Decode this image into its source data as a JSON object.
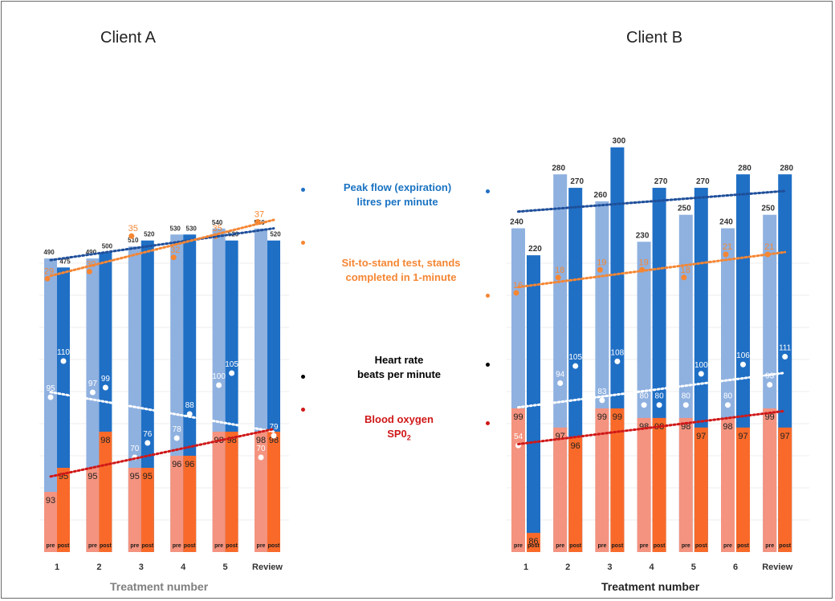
{
  "panels": [
    {
      "title": "Client A",
      "x_title": "Treatment number"
    },
    {
      "title": "Client B",
      "x_title": "Treatment number"
    }
  ],
  "legend": [
    {
      "line1": "Peak flow (expiration)",
      "line2": "litres per minute",
      "color": "#1a73c2"
    },
    {
      "line1": "Sit-to-stand test, stands",
      "line2": "completed in 1-minute",
      "color": "#f58633"
    },
    {
      "line1": "Heart rate",
      "line2": "beats per minute",
      "color": "#000000"
    },
    {
      "line1": "Blood oxygen",
      "line2": "SP0",
      "line2_sub": "2",
      "color": "#d01818"
    }
  ],
  "colors": {
    "peak_pre": "#8fb1e0",
    "peak_post": "#1f6fc5",
    "spo2_pre": "#f4937f",
    "spo2_post": "#f96a2a",
    "sit_to_stand": "#f58633",
    "blood_oxygen_trend": "#d01818",
    "peak_trend": "#1f4f9a",
    "heart_rate": "#ffffff"
  },
  "pair_labels": [
    "pre",
    "post"
  ],
  "chart_data": [
    {
      "type": "bar",
      "title": "Client A",
      "xlabel": "Treatment number",
      "categories": [
        "1",
        "2",
        "3",
        "4",
        "5",
        "Review"
      ],
      "series": [
        {
          "name": "Peak flow (expiration) litres per minute",
          "pre": [
            490,
            490,
            510,
            530,
            540,
            540
          ],
          "post": [
            475,
            500,
            520,
            530,
            520,
            520
          ]
        },
        {
          "name": "Blood oxygen SP02",
          "pre": [
            93,
            95,
            95,
            96,
            98,
            98
          ],
          "post": [
            95,
            98,
            95,
            96,
            98,
            98
          ]
        },
        {
          "name": "Sit-to-stand test, stands completed in 1-minute",
          "values": [
            29,
            30,
            35,
            32,
            35,
            37
          ]
        },
        {
          "name": "Heart rate beats per minute",
          "pre": [
            95,
            97,
            70,
            78,
            100,
            70
          ],
          "post": [
            110,
            99,
            76,
            88,
            105,
            79
          ]
        }
      ]
    },
    {
      "type": "bar",
      "title": "Client B",
      "xlabel": "Treatment number",
      "categories": [
        "1",
        "2",
        "3",
        "4",
        "5",
        "6",
        "Review"
      ],
      "series": [
        {
          "name": "Peak flow (expiration) litres per minute",
          "pre": [
            240,
            280,
            260,
            230,
            250,
            240,
            250
          ],
          "post": [
            220,
            270,
            300,
            270,
            270,
            280,
            280
          ]
        },
        {
          "name": "Blood oxygen SP02",
          "pre": [
            99,
            97,
            99,
            98,
            98,
            98,
            99
          ],
          "post": [
            86,
            96,
            99,
            98,
            97,
            97,
            97
          ]
        },
        {
          "name": "Sit-to-stand test, stands completed in 1-minute",
          "values": [
            16,
            18,
            19,
            19,
            18,
            21,
            21
          ]
        },
        {
          "name": "Heart rate beats per minute",
          "pre": [
            54,
            94,
            83,
            80,
            80,
            80,
            93
          ],
          "post": [
            null,
            105,
            108,
            80,
            100,
            106,
            111
          ]
        }
      ]
    }
  ]
}
